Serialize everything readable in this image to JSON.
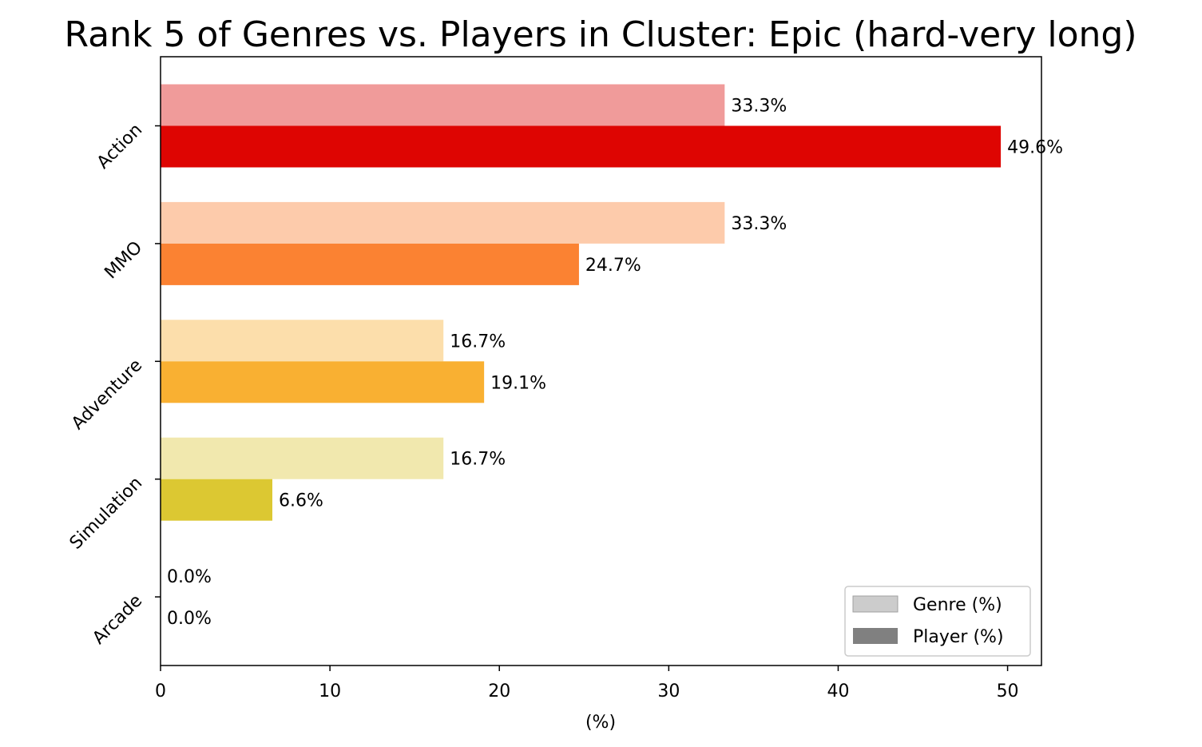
{
  "chart_data": {
    "type": "bar",
    "orientation": "horizontal",
    "title": "Rank 5 of Genres vs. Players in Cluster: Epic (hard-very long)",
    "xlabel": "(%)",
    "ylabel": "",
    "xlim": [
      0,
      52
    ],
    "x_ticks": [
      0,
      10,
      20,
      30,
      40,
      50
    ],
    "categories": [
      "Action",
      "MMO",
      "Adventure",
      "Simulation",
      "Arcade"
    ],
    "series": [
      {
        "name": "Genre (%)",
        "values": [
          33.3,
          33.3,
          16.7,
          16.7,
          0.0
        ],
        "labels": [
          "33.3%",
          "33.3%",
          "16.7%",
          "16.7%",
          "0.0%"
        ],
        "colors": [
          "#f09b9a",
          "#fdcbab",
          "#fcdeab",
          "#f1e8ae",
          "#cccccc"
        ],
        "legend_color": "#cccccc"
      },
      {
        "name": "Player (%)",
        "values": [
          49.6,
          24.7,
          19.1,
          6.6,
          0.0
        ],
        "labels": [
          "49.6%",
          "24.7%",
          "19.1%",
          "6.6%",
          "0.0%"
        ],
        "colors": [
          "#de0502",
          "#fb8232",
          "#f9b032",
          "#dcc832",
          "#808080"
        ],
        "legend_color": "#808080"
      }
    ],
    "legend_position": "lower-right",
    "grid": false
  }
}
